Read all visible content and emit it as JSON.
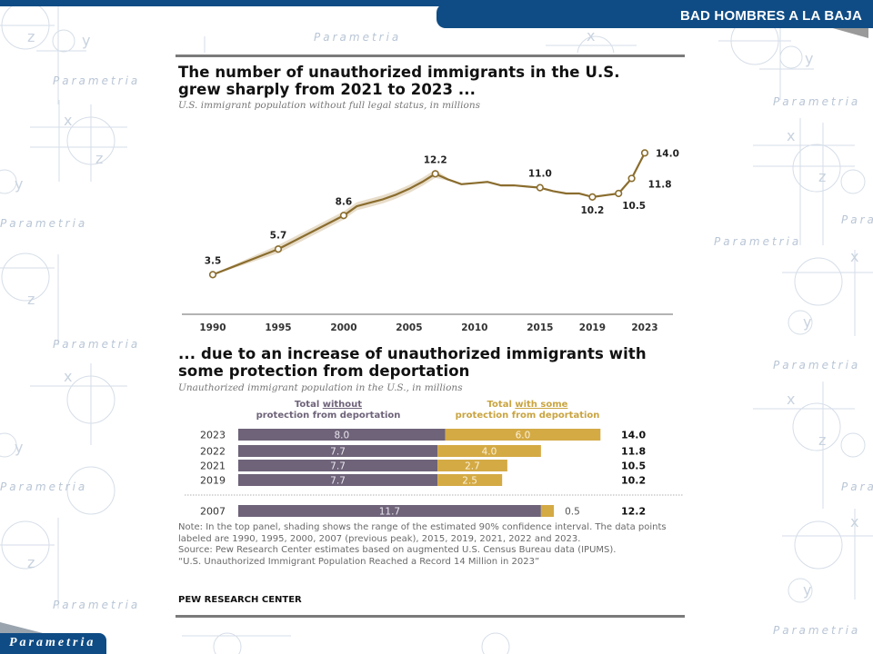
{
  "header": {
    "title": "BAD HOMBRES A LA BAJA"
  },
  "footer": {
    "brand": "Parametria"
  },
  "watermark": {
    "text": "Parametria",
    "axis_letters": [
      "x",
      "y",
      "z"
    ]
  },
  "colors": {
    "banner": "#0f4c85",
    "line": "#8a6d2e",
    "confidence_band": "#e6d9c4",
    "bar_without": "#6e6379",
    "bar_with": "#d4aa45",
    "legend_without": "#6e6379",
    "legend_with": "#c9a440"
  },
  "chart_data": [
    {
      "type": "line",
      "title": "The number of unauthorized immigrants in the U.S. grew sharply from 2021 to 2023 ...",
      "title_lines": [
        "The number of unauthorized immigrants in the U.S.",
        "grew sharply from 2021 to 2023 ..."
      ],
      "subtitle": "U.S. immigrant population without full legal status, in millions",
      "xlabel": "",
      "ylabel": "",
      "x_ticks": [
        "1990",
        "1995",
        "2000",
        "2005",
        "2010",
        "2015",
        "2019",
        "2023"
      ],
      "x_tick_values": [
        1990,
        1995,
        2000,
        2005,
        2010,
        2015,
        2019,
        2023
      ],
      "xlim": [
        1990,
        2023
      ],
      "ylim": [
        0,
        14.5
      ],
      "grid": false,
      "series": [
        {
          "name": "Unauthorized immigrant population",
          "x": [
            1990,
            1995,
            2000,
            2001,
            2002,
            2003,
            2004,
            2005,
            2006,
            2007,
            2008,
            2009,
            2010,
            2011,
            2012,
            2013,
            2014,
            2015,
            2016,
            2017,
            2018,
            2019,
            2020,
            2021,
            2022,
            2023
          ],
          "values": [
            3.5,
            5.7,
            8.6,
            9.4,
            9.7,
            10.0,
            10.4,
            10.9,
            11.5,
            12.2,
            11.7,
            11.3,
            11.4,
            11.5,
            11.2,
            11.2,
            11.1,
            11.0,
            10.7,
            10.5,
            10.5,
            10.2,
            10.35,
            10.5,
            11.8,
            14.0
          ],
          "labeled_points": [
            {
              "x": 1990,
              "label": "3.5"
            },
            {
              "x": 1995,
              "label": "5.7"
            },
            {
              "x": 2000,
              "label": "8.6"
            },
            {
              "x": 2007,
              "label": "12.2"
            },
            {
              "x": 2015,
              "label": "11.0"
            },
            {
              "x": 2019,
              "label": "10.2"
            },
            {
              "x": 2021,
              "label": "10.5"
            },
            {
              "x": 2022,
              "label": "11.8"
            },
            {
              "x": 2023,
              "label": "14.0"
            }
          ]
        }
      ],
      "confidence_interval": "90%"
    },
    {
      "type": "bar",
      "orientation": "horizontal-stacked",
      "title": "... due to an increase of unauthorized immigrants with some protection from deportation",
      "title_lines": [
        "... due to an increase of unauthorized immigrants with",
        "some protection from deportation"
      ],
      "subtitle": "Unauthorized immigrant population in the U.S., in millions",
      "legend": [
        {
          "name": "Total without protection from deportation",
          "line1_pre": "Total ",
          "line1_u": "without",
          "line2": "protection from deportation"
        },
        {
          "name": "Total with some protection from deportation",
          "line1_pre": "Total ",
          "line1_u": "with some",
          "line2": "protection from deportation"
        }
      ],
      "legend_position": "top",
      "categories": [
        "2023",
        "2022",
        "2021",
        "2019",
        "2007"
      ],
      "series": [
        {
          "name": "Total without protection from deportation",
          "values": [
            8.0,
            7.7,
            7.7,
            7.7,
            11.7
          ],
          "labels": [
            "8.0",
            "7.7",
            "7.7",
            "7.7",
            "11.7"
          ]
        },
        {
          "name": "Total with some protection from deportation",
          "values": [
            6.0,
            4.0,
            2.7,
            2.5,
            0.5
          ],
          "labels": [
            "6.0",
            "4.0",
            "2.7",
            "2.5",
            "0.5"
          ]
        }
      ],
      "totals": [
        "14.0",
        "11.8",
        "10.5",
        "10.2",
        "12.2"
      ],
      "xlim": [
        0,
        14
      ]
    }
  ],
  "notes": [
    "Note: In the top panel, shading shows the range of the estimated 90% confidence interval. The data points labeled are 1990, 1995, 2000, 2007 (previous peak), 2015, 2019, 2021, 2022 and 2023.",
    "Source: Pew Research Center estimates based on augmented U.S. Census Bureau data (IPUMS).",
    "“U.S. Unauthorized Immigrant Population Reached a Record 14 Million in 2023”"
  ],
  "source_brand": "PEW RESEARCH CENTER"
}
